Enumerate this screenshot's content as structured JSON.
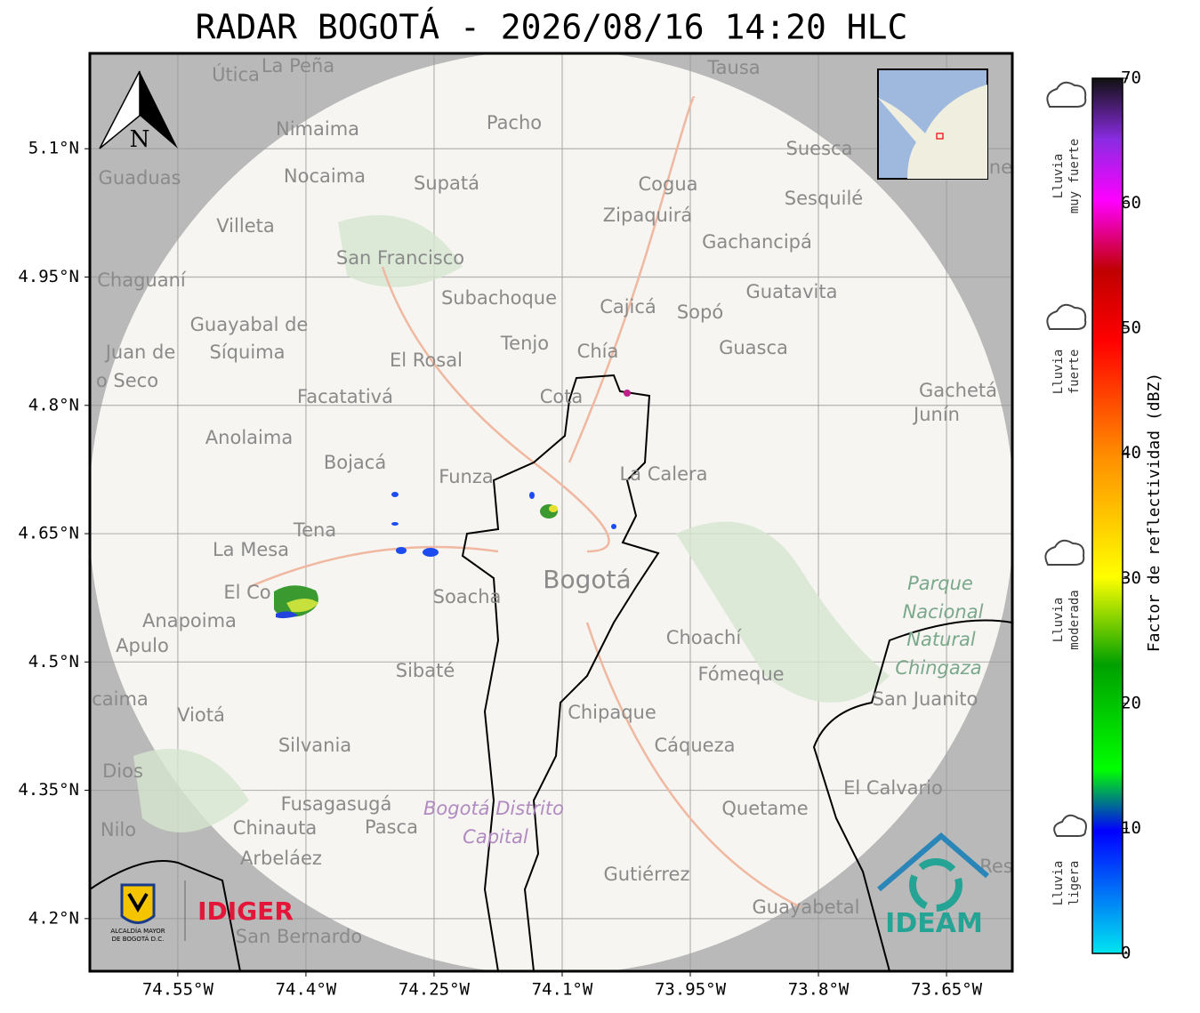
{
  "map": {
    "title": "RADAR BOGOTÁ - 2026/08/16 14:20 HLC",
    "xlim": [
      -74.653,
      -73.573
    ],
    "ylim": [
      4.1385,
      5.2115
    ],
    "xticks": [
      {
        "value": -74.55,
        "label": "74.55°W"
      },
      {
        "value": -74.4,
        "label": "74.4°W"
      },
      {
        "value": -74.25,
        "label": "74.25°W"
      },
      {
        "value": -74.1,
        "label": "74.1°W"
      },
      {
        "value": -73.95,
        "label": "73.95°W"
      },
      {
        "value": -73.8,
        "label": "73.8°W"
      },
      {
        "value": -73.65,
        "label": "73.65°W"
      }
    ],
    "yticks": [
      {
        "value": 5.1,
        "label": "5.1°N"
      },
      {
        "value": 4.95,
        "label": "4.95°N"
      },
      {
        "value": 4.8,
        "label": "4.8°N"
      },
      {
        "value": 4.65,
        "label": "4.65°N"
      },
      {
        "value": 4.5,
        "label": "4.5°N"
      },
      {
        "value": 4.35,
        "label": "4.35°N"
      },
      {
        "value": 4.2,
        "label": "4.2°N"
      }
    ],
    "grid": true,
    "north": "N",
    "places": [
      "Útica",
      "La Peña",
      "Tausa",
      "Nimaima",
      "Pacho",
      "Guaduas",
      "Nocaima",
      "Supatá",
      "Cogua",
      "Suesca",
      "Sesquilé",
      "Zipaquirá",
      "Villeta",
      "Gachancipá",
      "San Francisco",
      "Chaguaní",
      "Guatavita",
      "Subachoque",
      "Cajicá",
      "Sopó",
      "Guayabal de",
      "Síquima",
      "Juan de",
      "o Seco",
      "Tenjo",
      "Chía",
      "Guasca",
      "El Rosal",
      "Facatativá",
      "Cota",
      "Gachetá",
      "Junín",
      "Anolaima",
      "Bojacá",
      "Funza",
      "La Calera",
      "Tena",
      "La Mesa",
      "Bogotá",
      "Parque",
      "Nacional",
      "Natural",
      "Chingaza",
      "El Co",
      "Soacha",
      "Anapoima",
      "Apulo",
      "Choachí",
      "Sibaté",
      "Fómeque",
      "San Juanito",
      "caima",
      "Viotá",
      "Chipaque",
      "Silvania",
      "Cáqueza",
      "Dios",
      "El Calvario",
      "Fusagasugá",
      "Bogotá Distrito",
      "Capital",
      "Quetame",
      "Nilo",
      "Chinauta",
      "Pasca",
      "Arbeláez",
      "Gutiérrez",
      "Res",
      "Guayabetal",
      "San Bernardo",
      "ne"
    ],
    "logos": {
      "alcaldia": [
        "ALCALDÍA MAYOR",
        "DE BOGOTÁ D.C."
      ],
      "idiger": "IDIGER",
      "ideam": "IDEAM"
    }
  },
  "colorbar": {
    "label": "Factor de reflectividad (dBZ)",
    "lim": [
      0,
      70
    ],
    "ticks": [
      0,
      10,
      20,
      30,
      40,
      50,
      60,
      70
    ],
    "rain_levels": [
      [
        "Lluvia",
        "muy fuerte"
      ],
      [
        "Lluvia",
        "fuerte"
      ],
      [
        "Lluvia",
        "moderada"
      ],
      [
        "Lluvia",
        "ligera"
      ]
    ]
  }
}
